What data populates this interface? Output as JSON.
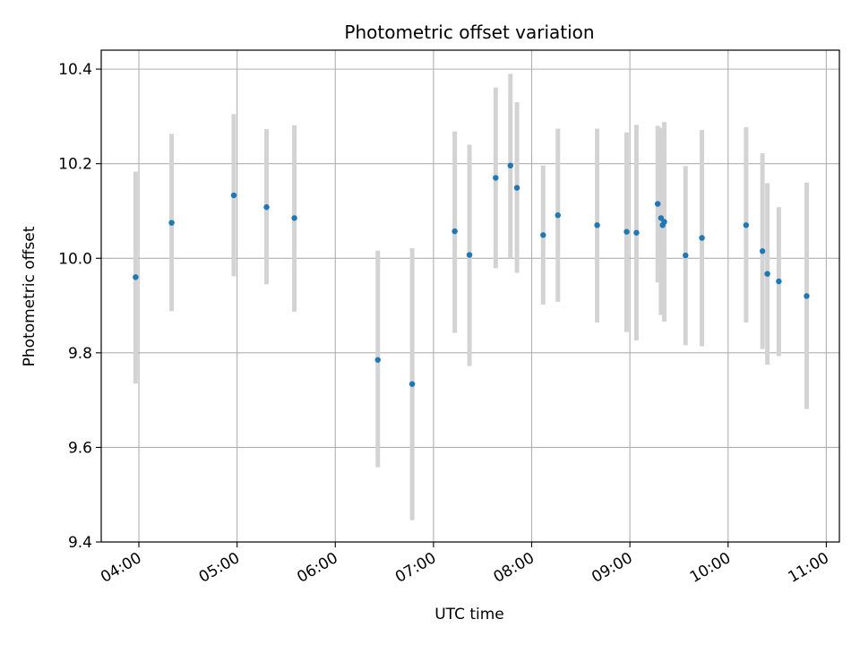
{
  "chart_data": {
    "type": "scatter",
    "title": "Photometric offset variation",
    "xlabel": "UTC time",
    "ylabel": "Photometric offset",
    "xlim": [
      "03:37",
      "11:08"
    ],
    "ylim": [
      9.4,
      10.44
    ],
    "x_ticks": [
      "04:00",
      "05:00",
      "06:00",
      "07:00",
      "08:00",
      "09:00",
      "10:00",
      "11:00"
    ],
    "y_ticks": [
      9.4,
      9.6,
      9.8,
      10.0,
      10.2,
      10.4
    ],
    "grid": true,
    "marker_color": "#1f77b4",
    "errorbar_color": "#d3d3d3",
    "points": [
      {
        "time": "03:58",
        "y": 9.96,
        "ylow": 9.735,
        "yhigh": 10.183
      },
      {
        "time": "04:20",
        "y": 10.075,
        "ylow": 9.888,
        "yhigh": 10.263
      },
      {
        "time": "04:58",
        "y": 10.133,
        "ylow": 9.962,
        "yhigh": 10.305
      },
      {
        "time": "05:18",
        "y": 10.108,
        "ylow": 9.945,
        "yhigh": 10.273
      },
      {
        "time": "05:35",
        "y": 10.085,
        "ylow": 9.887,
        "yhigh": 10.281
      },
      {
        "time": "06:26",
        "y": 9.785,
        "ylow": 9.558,
        "yhigh": 10.016
      },
      {
        "time": "06:47",
        "y": 9.734,
        "ylow": 9.446,
        "yhigh": 10.021
      },
      {
        "time": "07:13",
        "y": 10.057,
        "ylow": 9.842,
        "yhigh": 10.268
      },
      {
        "time": "07:22",
        "y": 10.007,
        "ylow": 9.772,
        "yhigh": 10.24
      },
      {
        "time": "07:38",
        "y": 10.17,
        "ylow": 9.979,
        "yhigh": 10.361
      },
      {
        "time": "07:47",
        "y": 10.196,
        "ylow": 10.0,
        "yhigh": 10.39
      },
      {
        "time": "07:51",
        "y": 10.149,
        "ylow": 9.969,
        "yhigh": 10.33
      },
      {
        "time": "08:07",
        "y": 10.049,
        "ylow": 9.902,
        "yhigh": 10.196
      },
      {
        "time": "08:16",
        "y": 10.091,
        "ylow": 9.908,
        "yhigh": 10.274
      },
      {
        "time": "08:40",
        "y": 10.07,
        "ylow": 9.864,
        "yhigh": 10.274
      },
      {
        "time": "08:58",
        "y": 10.056,
        "ylow": 9.844,
        "yhigh": 10.266
      },
      {
        "time": "09:04",
        "y": 10.054,
        "ylow": 9.826,
        "yhigh": 10.282
      },
      {
        "time": "09:17",
        "y": 10.115,
        "ylow": 9.949,
        "yhigh": 10.28
      },
      {
        "time": "09:19",
        "y": 10.085,
        "ylow": 9.88,
        "yhigh": 10.276
      },
      {
        "time": "09:20",
        "y": 10.07,
        "ylow": 9.9,
        "yhigh": 10.24
      },
      {
        "time": "09:21",
        "y": 10.077,
        "ylow": 9.866,
        "yhigh": 10.288
      },
      {
        "time": "09:34",
        "y": 10.006,
        "ylow": 9.816,
        "yhigh": 10.195
      },
      {
        "time": "09:44",
        "y": 10.043,
        "ylow": 9.814,
        "yhigh": 10.271
      },
      {
        "time": "10:11",
        "y": 10.07,
        "ylow": 9.864,
        "yhigh": 10.277
      },
      {
        "time": "10:21",
        "y": 10.015,
        "ylow": 9.808,
        "yhigh": 10.222
      },
      {
        "time": "10:24",
        "y": 9.967,
        "ylow": 9.775,
        "yhigh": 10.159
      },
      {
        "time": "10:31",
        "y": 9.951,
        "ylow": 9.793,
        "yhigh": 10.108
      },
      {
        "time": "10:48",
        "y": 9.92,
        "ylow": 9.681,
        "yhigh": 10.16
      }
    ]
  }
}
